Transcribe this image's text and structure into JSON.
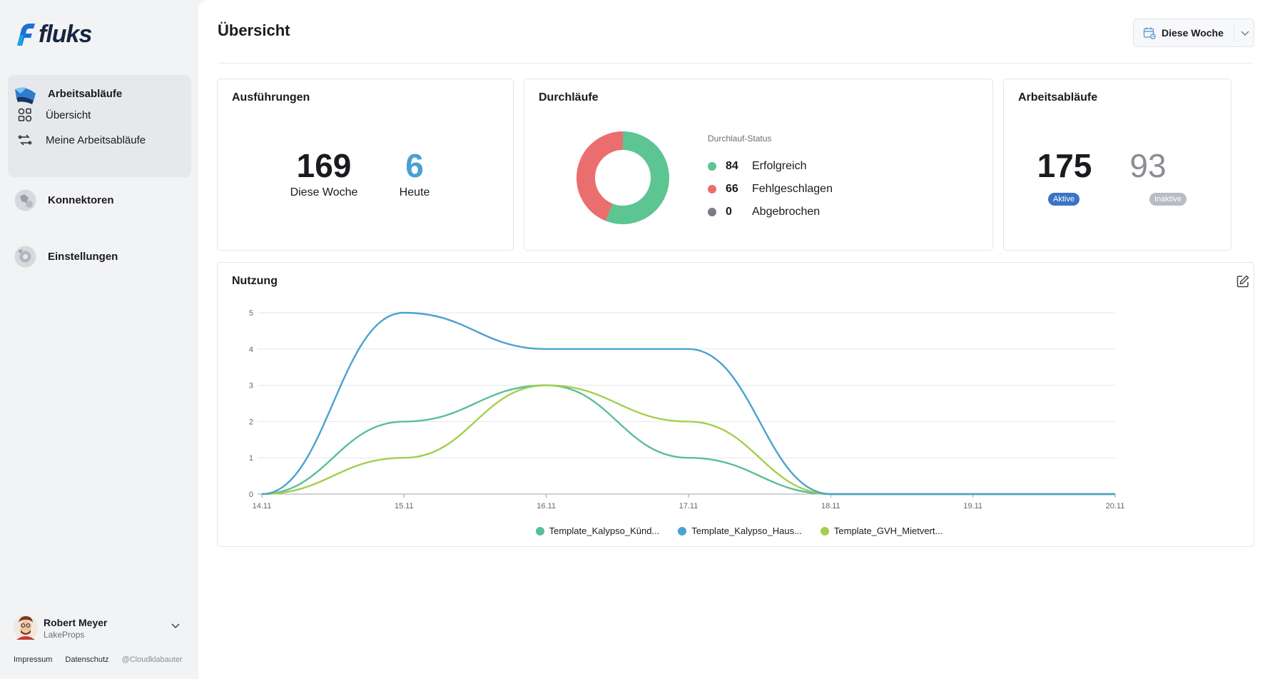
{
  "app": {
    "logo_text": "fluks"
  },
  "sidebar": {
    "group_label": "Arbeitsabläufe",
    "sub_items": [
      {
        "label": "Übersicht",
        "icon": "overview-icon"
      },
      {
        "label": "Meine Arbeitsabläufe",
        "icon": "workflow-icon"
      }
    ],
    "items": [
      {
        "label": "Konnektoren",
        "icon": "connectors-icon"
      },
      {
        "label": "Einstellungen",
        "icon": "settings-icon"
      }
    ],
    "user": {
      "name": "Robert Meyer",
      "org": "LakeProps"
    },
    "footer": {
      "imprint": "Impressum",
      "privacy": "Datenschutz",
      "credit": "@Cloudklabauter"
    }
  },
  "header": {
    "title": "Übersicht",
    "range_label": "Diese Woche"
  },
  "executions": {
    "title": "Ausführungen",
    "week_value": "169",
    "week_label": "Diese Woche",
    "today_value": "6",
    "today_label": "Heute"
  },
  "runs": {
    "title": "Durchläufe",
    "legend_title": "Durchlauf-Status",
    "statuses": [
      {
        "count": "84",
        "label": "Erfolgreich",
        "color": "#5cc592",
        "value": 84
      },
      {
        "count": "66",
        "label": "Fehlgeschlagen",
        "color": "#eb6e6e",
        "value": 66
      },
      {
        "count": "0",
        "label": "Abgebrochen",
        "color": "#7a7d85",
        "value": 0
      }
    ]
  },
  "workflows": {
    "title": "Arbeitsabläufe",
    "active_value": "175",
    "active_label": "Aktive",
    "active_color": "#3a73c7",
    "inactive_value": "93",
    "inactive_label": "Inaktive",
    "inactive_color": "#b9bcc2"
  },
  "usage": {
    "title": "Nutzung"
  },
  "chart_data": {
    "type": "line",
    "x": [
      "14.11",
      "15.11",
      "16.11",
      "17.11",
      "18.11",
      "19.11",
      "20.11"
    ],
    "ylim": [
      0,
      5
    ],
    "yticks": [
      "0",
      "1",
      "2",
      "3",
      "4",
      "5"
    ],
    "grid": true,
    "legend_position": "bottom",
    "series": [
      {
        "name": "Template_Kalypso_Künd...",
        "color": "#58bf96",
        "values": [
          0,
          2,
          3,
          1,
          0,
          0,
          0
        ]
      },
      {
        "name": "Template_Kalypso_Haus...",
        "color": "#4aa2cf",
        "values": [
          0,
          5,
          4,
          4,
          0,
          0,
          0
        ]
      },
      {
        "name": "Template_GVH_Mietvert...",
        "color": "#a2cf4f",
        "values": [
          0,
          1,
          3,
          2,
          0,
          0,
          0
        ]
      }
    ]
  }
}
